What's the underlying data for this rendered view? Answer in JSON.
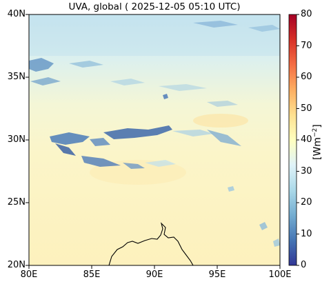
{
  "title": "UVA, global ( 2025-12-05 05:10 UTC)",
  "map": {
    "lat_ticks": [
      "40N",
      "35N",
      "30N",
      "25N",
      "20N"
    ],
    "lon_ticks": [
      "80E",
      "85E",
      "90E",
      "95E",
      "100E"
    ],
    "extent": {
      "lon": [
        80,
        100
      ],
      "lat": [
        20,
        40
      ]
    }
  },
  "colorbar": {
    "label": "[Wm",
    "label_sup": "−2",
    "label_end": "]",
    "ticks": [
      "80",
      "70",
      "60",
      "50",
      "40",
      "30",
      "20",
      "10",
      "0"
    ],
    "range": [
      0,
      80
    ],
    "colormap": "RdYlBu_r",
    "colors": [
      "#313695",
      "#4575b4",
      "#74add1",
      "#abd9e9",
      "#e0f3f8",
      "#ffffbf",
      "#fee090",
      "#fdae61",
      "#f46d43",
      "#d73027",
      "#a50026"
    ]
  },
  "colors": {
    "background_north": "#cfe9f1",
    "background_south": "#fdf3c4",
    "cloud_dark": "#3f6fb0",
    "cloud_mid": "#8fbfdc"
  }
}
